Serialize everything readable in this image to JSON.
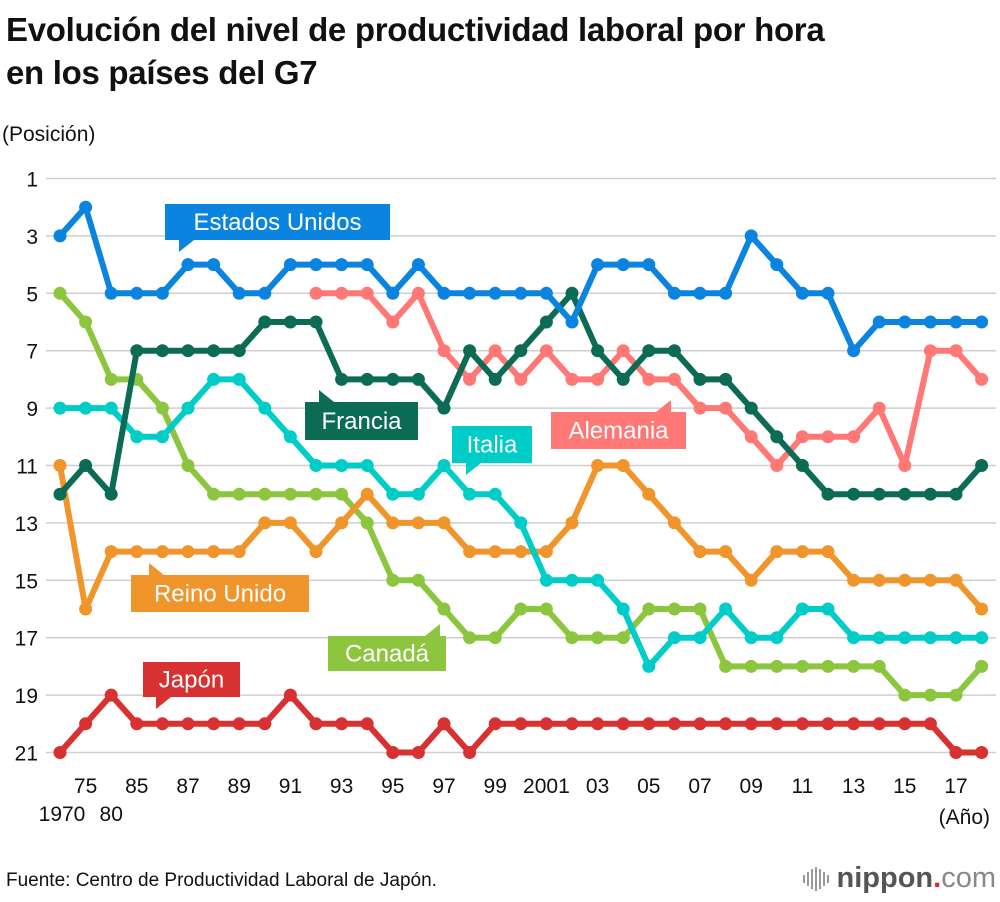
{
  "title_line1": "Evolución del nivel de productividad laboral por hora",
  "title_line2": "en los países del G7",
  "source": "Fuente: Centro de Productividad Laboral de Japón.",
  "logo": {
    "brand": "nippon",
    "dot": ".",
    "tld": "com"
  },
  "chart_data": {
    "type": "line",
    "title": "Evolución del nivel de productividad laboral por hora en los países del G7",
    "ylabel": "(Posición)",
    "xlabel": "(Año)",
    "y_inverted": true,
    "ylim": [
      1,
      21
    ],
    "yticks": [
      1,
      3,
      5,
      7,
      9,
      11,
      13,
      15,
      17,
      19,
      21
    ],
    "grid": true,
    "x": [
      1970,
      1975,
      1980,
      1985,
      1986,
      1987,
      1988,
      1989,
      1990,
      1991,
      1992,
      1993,
      1994,
      1995,
      1996,
      1997,
      1998,
      1999,
      2000,
      2001,
      2002,
      2003,
      2004,
      2005,
      2006,
      2007,
      2008,
      2009,
      2010,
      2011,
      2012,
      2013,
      2014,
      2015,
      2016,
      2017,
      2018
    ],
    "xtick_labels_row1": [
      {
        "i": 1,
        "t": "75"
      },
      {
        "i": 3,
        "t": "85"
      },
      {
        "i": 5,
        "t": "87"
      },
      {
        "i": 7,
        "t": "89"
      },
      {
        "i": 9,
        "t": "91"
      },
      {
        "i": 11,
        "t": "93"
      },
      {
        "i": 13,
        "t": "95"
      },
      {
        "i": 15,
        "t": "97"
      },
      {
        "i": 17,
        "t": "99"
      },
      {
        "i": 19,
        "t": "2001"
      },
      {
        "i": 21,
        "t": "03"
      },
      {
        "i": 23,
        "t": "05"
      },
      {
        "i": 25,
        "t": "07"
      },
      {
        "i": 27,
        "t": "09"
      },
      {
        "i": 29,
        "t": "11"
      },
      {
        "i": 31,
        "t": "13"
      },
      {
        "i": 33,
        "t": "15"
      },
      {
        "i": 35,
        "t": "17"
      }
    ],
    "xtick_labels_row2": [
      {
        "i": 0,
        "t": "1970"
      },
      {
        "i": 2,
        "t": "80"
      }
    ],
    "series": [
      {
        "name": "Estados Unidos",
        "color": "#0b84df",
        "start": 0,
        "values": [
          3,
          2,
          5,
          5,
          5,
          4,
          4,
          5,
          5,
          4,
          4,
          4,
          4,
          5,
          4,
          5,
          5,
          5,
          5,
          5,
          6,
          4,
          4,
          4,
          5,
          5,
          5,
          3,
          4,
          5,
          5,
          7,
          6,
          6,
          6,
          6,
          6
        ]
      },
      {
        "name": "Francia",
        "color": "#0c6b55",
        "start": 0,
        "values": [
          12,
          11,
          12,
          7,
          7,
          7,
          7,
          7,
          6,
          6,
          6,
          8,
          8,
          8,
          8,
          9,
          7,
          8,
          7,
          6,
          5,
          7,
          8,
          7,
          7,
          8,
          8,
          9,
          10,
          11,
          12,
          12,
          12,
          12,
          12,
          12,
          11
        ]
      },
      {
        "name": "Alemania",
        "color": "#ff7875",
        "start": 10,
        "values": [
          5,
          5,
          5,
          6,
          5,
          7,
          8,
          7,
          8,
          7,
          8,
          8,
          7,
          8,
          8,
          9,
          9,
          10,
          11,
          10,
          10,
          10,
          9,
          11,
          7,
          7,
          8
        ]
      },
      {
        "name": "Italia",
        "color": "#00ccc8",
        "start": 0,
        "values": [
          9,
          9,
          9,
          10,
          10,
          9,
          8,
          8,
          9,
          10,
          11,
          11,
          11,
          12,
          12,
          11,
          12,
          12,
          13,
          15,
          15,
          15,
          16,
          18,
          17,
          17,
          16,
          17,
          17,
          16,
          16,
          17,
          17,
          17,
          17,
          17,
          17
        ]
      },
      {
        "name": "Reino Unido",
        "color": "#ef952c",
        "start": 0,
        "values": [
          11,
          16,
          14,
          14,
          14,
          14,
          14,
          14,
          13,
          13,
          14,
          13,
          12,
          13,
          13,
          13,
          14,
          14,
          14,
          14,
          13,
          11,
          11,
          12,
          13,
          14,
          14,
          15,
          14,
          14,
          14,
          15,
          15,
          15,
          15,
          15,
          16
        ]
      },
      {
        "name": "Canadá",
        "color": "#8cc63f",
        "start": 0,
        "values": [
          5,
          6,
          8,
          8,
          9,
          11,
          12,
          12,
          12,
          12,
          12,
          12,
          13,
          15,
          15,
          16,
          17,
          17,
          16,
          16,
          17,
          17,
          17,
          16,
          16,
          16,
          18,
          18,
          18,
          18,
          18,
          18,
          18,
          19,
          19,
          19,
          18
        ]
      },
      {
        "name": "Japón",
        "color": "#d83131",
        "start": 0,
        "values": [
          21,
          20,
          19,
          20,
          20,
          20,
          20,
          20,
          20,
          19,
          20,
          20,
          20,
          21,
          21,
          20,
          21,
          20,
          20,
          20,
          20,
          20,
          20,
          20,
          20,
          20,
          20,
          20,
          20,
          20,
          20,
          20,
          20,
          20,
          20,
          21,
          21
        ]
      }
    ],
    "annotations": [
      {
        "series": "Estados Unidos",
        "text": "Estados Unidos"
      },
      {
        "series": "Francia",
        "text": "Francia"
      },
      {
        "series": "Italia",
        "text": "Italia"
      },
      {
        "series": "Alemania",
        "text": "Alemania"
      },
      {
        "series": "Reino Unido",
        "text": "Reino Unido"
      },
      {
        "series": "Canadá",
        "text": "Canadá"
      },
      {
        "series": "Japón",
        "text": "Japón"
      }
    ]
  }
}
